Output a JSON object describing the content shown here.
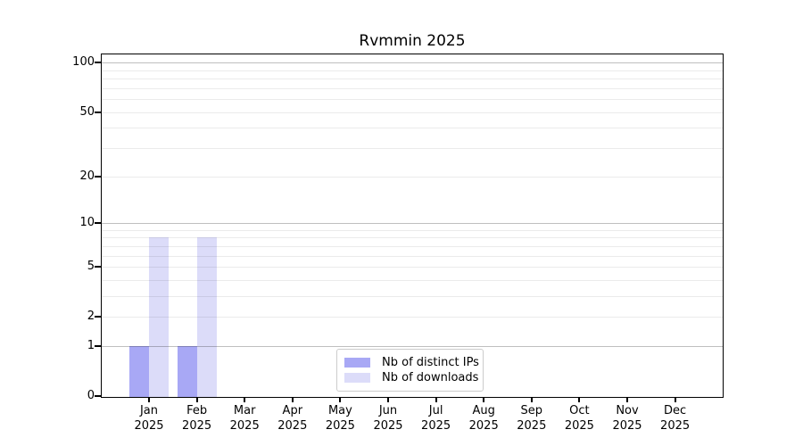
{
  "title": "Rvmmin 2025",
  "chart_data": {
    "type": "bar",
    "title": "Rvmmin 2025",
    "categories": [
      "Jan\n2025",
      "Feb\n2025",
      "Mar\n2025",
      "Apr\n2025",
      "May\n2025",
      "Jun\n2025",
      "Jul\n2025",
      "Aug\n2025",
      "Sep\n2025",
      "Oct\n2025",
      "Nov\n2025",
      "Dec\n2025"
    ],
    "series": [
      {
        "name": "Nb of distinct IPs",
        "color": "#a8a8f5",
        "values": [
          1,
          1,
          0,
          0,
          0,
          0,
          0,
          0,
          0,
          0,
          0,
          0
        ]
      },
      {
        "name": "Nb of downloads",
        "color": "#dcdcf9",
        "values": [
          8,
          8,
          0,
          0,
          0,
          0,
          0,
          0,
          0,
          0,
          0,
          0
        ]
      }
    ],
    "y_axis": {
      "scale": "log1p",
      "tick_values": [
        0,
        1,
        2,
        5,
        10,
        20,
        50,
        100
      ],
      "major_gridlines": [
        1,
        10,
        100
      ],
      "minor_gridlines": [
        2,
        3,
        4,
        5,
        6,
        7,
        8,
        9,
        20,
        30,
        40,
        50,
        60,
        70,
        80,
        90
      ],
      "range": [
        0,
        112
      ]
    },
    "xlabel": "",
    "ylabel": "",
    "legend_position": "lower center",
    "grid": true
  },
  "colors": {
    "major_grid": "rgba(0,0,0,0.25)",
    "minor_grid": "rgba(0,0,0,0.08)",
    "spine": "#000000"
  }
}
